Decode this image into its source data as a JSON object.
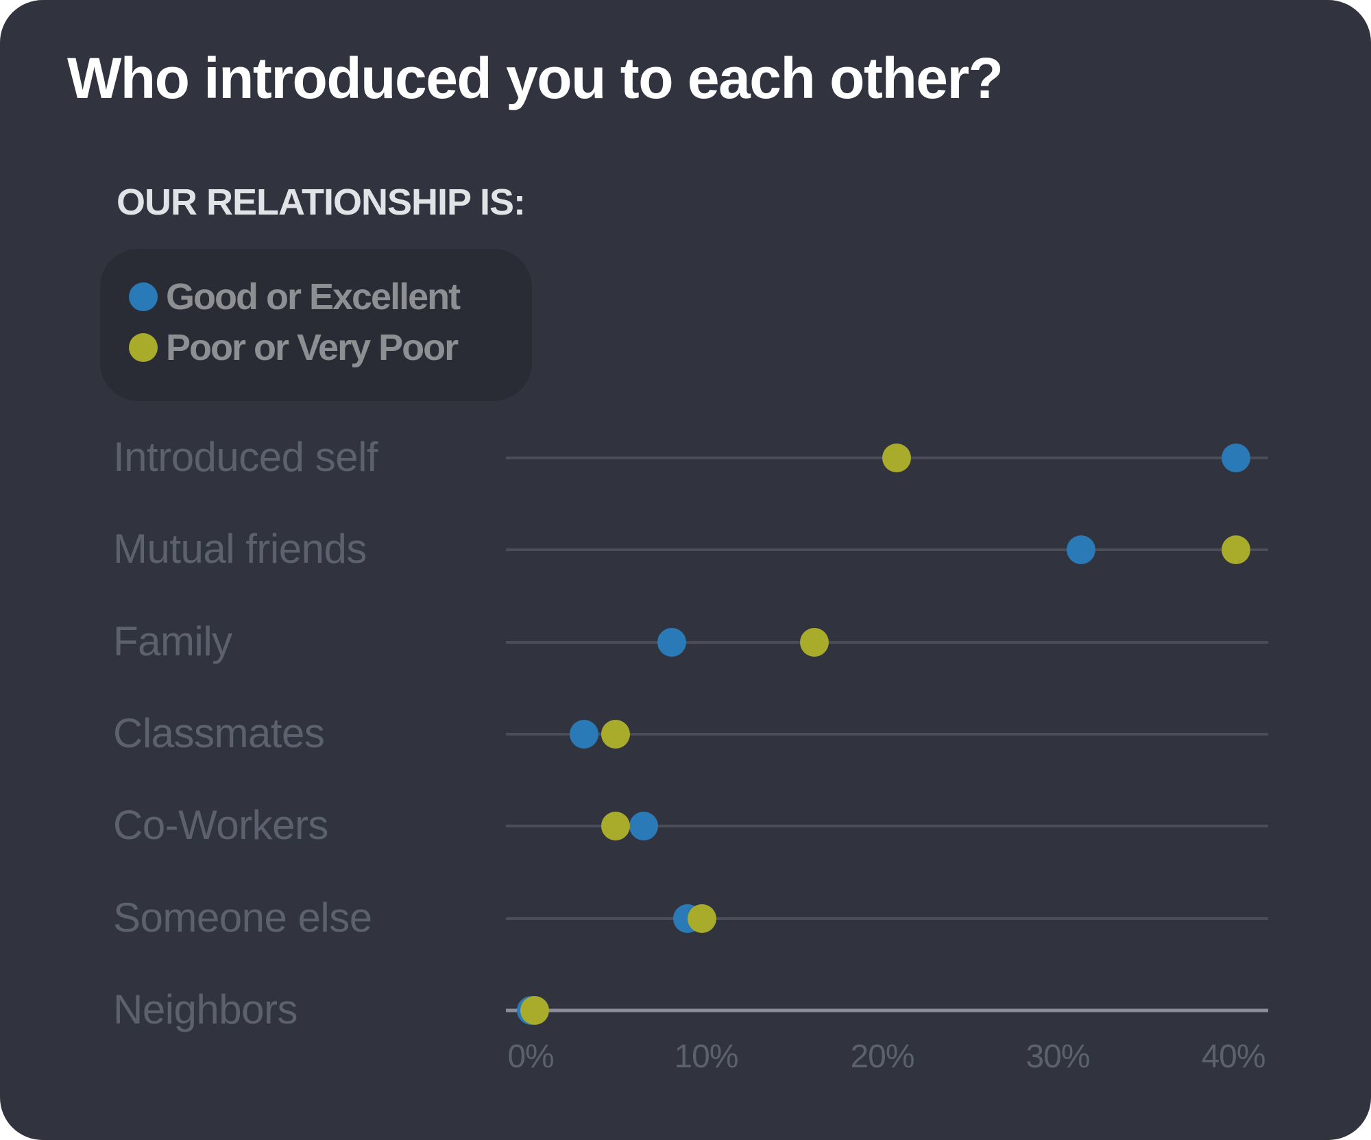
{
  "title": "Who introduced you to each other?",
  "legend": {
    "heading": "OUR RELATIONSHIP IS:",
    "items": [
      {
        "label": "Good or Excellent",
        "color": "#2a7ab8",
        "icon": "circle-marker"
      },
      {
        "label": "Poor or Very Poor",
        "color": "#a9ab2a",
        "icon": "circle-marker"
      }
    ]
  },
  "colors": {
    "background": "#31343f",
    "legend_background": "#2a2c35",
    "good": "#2a7ab8",
    "poor": "#a9ab2a",
    "gridline": "#4b4e5a",
    "axis_line": "#8b8e97"
  },
  "chart_data": {
    "type": "scatter",
    "subtype": "dot-plot",
    "title": "Who introduced you to each other?",
    "legend_title": "OUR RELATIONSHIP IS:",
    "legend_position": "top-left",
    "categories": [
      "Introduced self",
      "Mutual friends",
      "Family",
      "Classmates",
      "Co-Workers",
      "Someone else",
      "Neighbors"
    ],
    "series": [
      {
        "name": "Good or Excellent",
        "color": "#2a7ab8",
        "values": [
          40.1,
          31.3,
          8.0,
          3.0,
          6.4,
          8.9,
          0.0
        ]
      },
      {
        "name": "Poor or Very Poor",
        "color": "#a9ab2a",
        "values": [
          20.8,
          40.1,
          16.1,
          4.8,
          4.8,
          9.7,
          0.2
        ]
      }
    ],
    "xlabel": "",
    "ylabel": "",
    "xlim": [
      0,
      40
    ],
    "x_ticks": [
      "0%",
      "10%",
      "20%",
      "30%",
      "40%"
    ],
    "grid": "horizontal guide lines per category"
  }
}
